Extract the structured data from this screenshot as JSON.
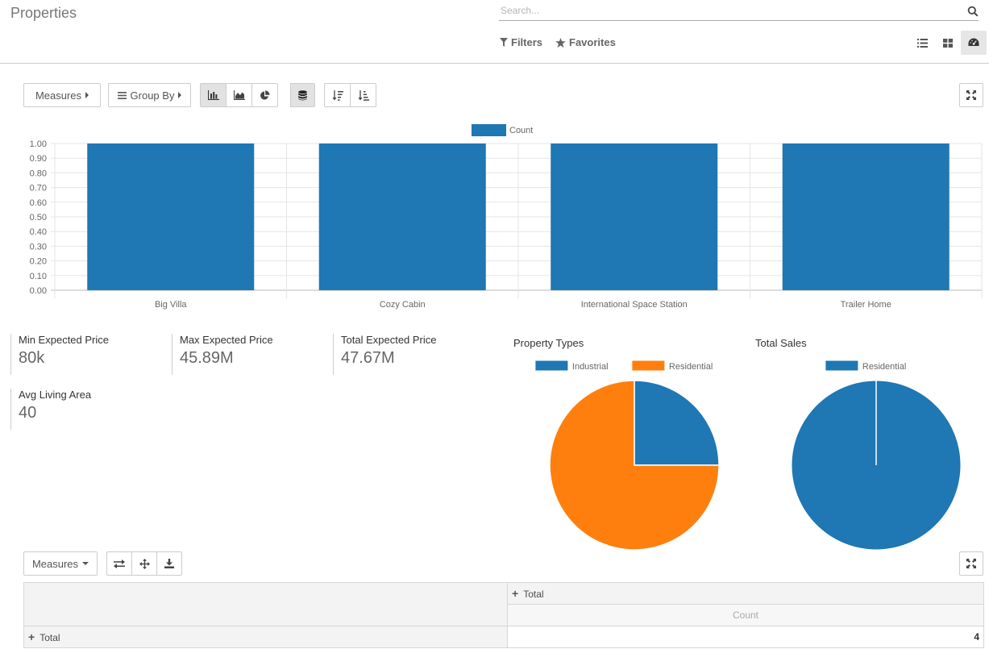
{
  "page": {
    "title": "Properties",
    "search_placeholder": "Search...",
    "filters_label": "Filters",
    "favorites_label": "Favorites",
    "views": [
      {
        "icon": "list-view-icon",
        "active": false
      },
      {
        "icon": "kanban-view-icon",
        "active": false
      },
      {
        "icon": "dashboard-view-icon",
        "active": true
      }
    ]
  },
  "graph_toolbar": {
    "measures_label": "Measures",
    "group_by_label": "Group By",
    "chart_type_buttons": [
      "bar-chart-icon",
      "line-chart-icon",
      "pie-chart-icon"
    ],
    "active_chart_type": "bar",
    "stacked_icon": "database-icon",
    "sort_icons": [
      "sort-descending-icon",
      "sort-ascending-icon"
    ],
    "expand_icon": "expand-icon"
  },
  "chart_data": [
    {
      "type": "bar",
      "categories": [
        "Big Villa",
        "Cozy Cabin",
        "International Space Station",
        "Trailer Home"
      ],
      "series": [
        {
          "name": "Count",
          "values": [
            1,
            1,
            1,
            1
          ],
          "color": "#1f77b4"
        }
      ],
      "yticks": [
        "0.00",
        "0.10",
        "0.20",
        "0.30",
        "0.40",
        "0.50",
        "0.60",
        "0.70",
        "0.80",
        "0.90",
        "1.00"
      ],
      "ylim": [
        0,
        1
      ],
      "grid": true,
      "legend": "top-center"
    },
    {
      "type": "pie",
      "title": "Property Types",
      "labels": [
        "Industrial",
        "Residential"
      ],
      "values": [
        1,
        3
      ],
      "colors": [
        "#1f77b4",
        "#ff7f0e"
      ],
      "legend": "top-center"
    },
    {
      "type": "pie",
      "title": "Total Sales",
      "labels": [
        "Residential"
      ],
      "values": [
        1
      ],
      "colors": [
        "#1f77b4"
      ],
      "legend": "top-center"
    }
  ],
  "kpis": [
    {
      "label": "Min Expected Price",
      "value": "80k"
    },
    {
      "label": "Max Expected Price",
      "value": "45.89M"
    },
    {
      "label": "Total Expected Price",
      "value": "47.67M"
    },
    {
      "label": "Avg Living Area",
      "value": "40"
    }
  ],
  "pivot": {
    "measures_label": "Measures",
    "toolbar_icons": [
      "flip-axis-icon",
      "expand-all-icon",
      "download-icon"
    ],
    "column_header": "Total",
    "measure_header": "Count",
    "row_header": "Total",
    "value": "4"
  }
}
